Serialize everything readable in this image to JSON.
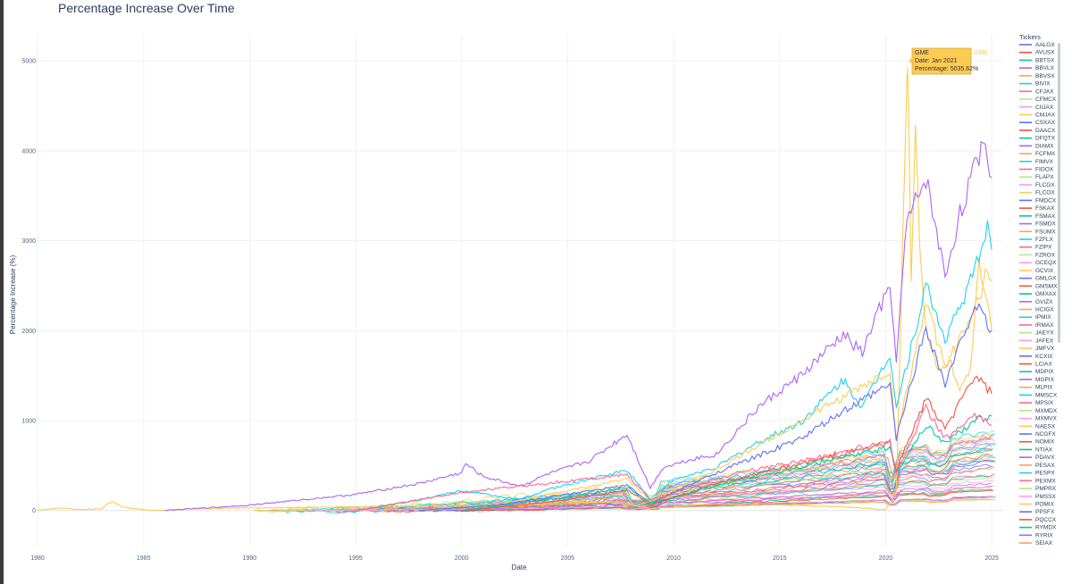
{
  "chart_data": {
    "type": "line",
    "title": "Percentage Increase Over Time",
    "xlabel": "Date",
    "ylabel": "Percentage Increase (%)",
    "xlim": [
      1980,
      2025.5
    ],
    "ylim": [
      -400,
      5300
    ],
    "x_ticks": [
      "1980",
      "1985",
      "1990",
      "1995",
      "2000",
      "2005",
      "2010",
      "2015",
      "2020",
      "2025"
    ],
    "y_ticks": [
      "0",
      "1000",
      "2000",
      "3000",
      "4000",
      "5000"
    ],
    "grid": true,
    "legend": {
      "title": "Tickers",
      "placement": "right"
    },
    "tooltip": {
      "series": "GME",
      "line1": "GME",
      "line2": "Date: Jan 2021",
      "line3": "Percentage: 5035.62%",
      "side_label": "GME",
      "x": 2021.04,
      "y": 5035.62
    },
    "series": [
      {
        "name": "AALGX",
        "color": "#636efa"
      },
      {
        "name": "AVUSX",
        "color": "#ef553b"
      },
      {
        "name": "BBTSX",
        "color": "#00cc96"
      },
      {
        "name": "BBVLX",
        "color": "#ab63fa"
      },
      {
        "name": "BBVSX",
        "color": "#ffa15a"
      },
      {
        "name": "BIVIX",
        "color": "#19d3f3"
      },
      {
        "name": "CFJAX",
        "color": "#ff6692"
      },
      {
        "name": "CFMCX",
        "color": "#b6e880"
      },
      {
        "name": "CIIJAX",
        "color": "#ff97ff"
      },
      {
        "name": "CMJAX",
        "color": "#fecb52"
      },
      {
        "name": "CSXAX",
        "color": "#636efa"
      },
      {
        "name": "DAACX",
        "color": "#ef553b"
      },
      {
        "name": "DFQTX",
        "color": "#00cc96"
      },
      {
        "name": "DIAMX",
        "color": "#ab63fa"
      },
      {
        "name": "FCFMX",
        "color": "#ffa15a"
      },
      {
        "name": "FIMVX",
        "color": "#19d3f3"
      },
      {
        "name": "FIOOX",
        "color": "#ff6692"
      },
      {
        "name": "FLAPX",
        "color": "#b6e880"
      },
      {
        "name": "FLCGX",
        "color": "#ff97ff"
      },
      {
        "name": "FLCOX",
        "color": "#fecb52"
      },
      {
        "name": "FMDCX",
        "color": "#636efa"
      },
      {
        "name": "FSKAX",
        "color": "#ef553b"
      },
      {
        "name": "FSMAX",
        "color": "#00cc96"
      },
      {
        "name": "FSMDX",
        "color": "#ab63fa"
      },
      {
        "name": "FSUMX",
        "color": "#ffa15a"
      },
      {
        "name": "FZFLX",
        "color": "#19d3f3"
      },
      {
        "name": "FZIPX",
        "color": "#ff6692"
      },
      {
        "name": "FZROX",
        "color": "#b6e880"
      },
      {
        "name": "GCEQX",
        "color": "#ff97ff"
      },
      {
        "name": "GCVIX",
        "color": "#fecb52"
      },
      {
        "name": "GMLGX",
        "color": "#636efa"
      },
      {
        "name": "GMSMX",
        "color": "#ef553b"
      },
      {
        "name": "GMXAX",
        "color": "#00cc96"
      },
      {
        "name": "GVIZX",
        "color": "#ab63fa"
      },
      {
        "name": "HCIGX",
        "color": "#ffa15a"
      },
      {
        "name": "IPMIX",
        "color": "#19d3f3"
      },
      {
        "name": "IRMAX",
        "color": "#ff6692"
      },
      {
        "name": "JAEYX",
        "color": "#b6e880"
      },
      {
        "name": "JAFEX",
        "color": "#ff97ff"
      },
      {
        "name": "JMFVX",
        "color": "#fecb52"
      },
      {
        "name": "KCXIX",
        "color": "#636efa"
      },
      {
        "name": "LCIAX",
        "color": "#ef553b"
      },
      {
        "name": "MDPIX",
        "color": "#00cc96"
      },
      {
        "name": "MGPIX",
        "color": "#ab63fa"
      },
      {
        "name": "MLPIX",
        "color": "#ffa15a"
      },
      {
        "name": "MMSCX",
        "color": "#19d3f3"
      },
      {
        "name": "MPSIX",
        "color": "#ff6692"
      },
      {
        "name": "MXMDX",
        "color": "#b6e880"
      },
      {
        "name": "MXMVX",
        "color": "#ff97ff"
      },
      {
        "name": "NAESX",
        "color": "#fecb52"
      },
      {
        "name": "NCGFX",
        "color": "#636efa"
      },
      {
        "name": "NOMIX",
        "color": "#ef553b"
      },
      {
        "name": "NTIAX",
        "color": "#00cc96"
      },
      {
        "name": "PDAVX",
        "color": "#ab63fa"
      },
      {
        "name": "PESAX",
        "color": "#ffa15a"
      },
      {
        "name": "PESPX",
        "color": "#19d3f3"
      },
      {
        "name": "PEXMX",
        "color": "#ff6692"
      },
      {
        "name": "PMPRX",
        "color": "#b6e880"
      },
      {
        "name": "PMSSX",
        "color": "#ff97ff"
      },
      {
        "name": "POMIX",
        "color": "#fecb52"
      },
      {
        "name": "PPSFX",
        "color": "#636efa"
      },
      {
        "name": "PQCCX",
        "color": "#ef553b"
      },
      {
        "name": "RYMDX",
        "color": "#00cc96"
      },
      {
        "name": "RYRIX",
        "color": "#ab63fa"
      },
      {
        "name": "SEIAX",
        "color": "#ffa15a"
      }
    ],
    "highlight_series": [
      {
        "name": "GME",
        "color": "#fecb52",
        "x": [
          1980,
          1981,
          1982,
          1983,
          1983.5,
          1984,
          1985,
          1986,
          1987,
          1990,
          1995,
          2000,
          2002,
          2005,
          2007,
          2009,
          2012,
          2015,
          2018,
          2020,
          2020.5,
          2021,
          2021.04,
          2021.2,
          2021.4,
          2021.6,
          2021.8,
          2022,
          2022.5,
          2023,
          2023.5,
          2024,
          2024.4,
          2024.8,
          2025
        ],
        "y": [
          0,
          30,
          10,
          20,
          100,
          40,
          10,
          0,
          20,
          30,
          40,
          60,
          50,
          80,
          100,
          20,
          80,
          60,
          40,
          10,
          200,
          4800,
          5035,
          2500,
          4400,
          3000,
          2200,
          1900,
          1500,
          1700,
          1300,
          1600,
          2800,
          2300,
          2000
        ]
      },
      {
        "name": "RYRIX",
        "color": "#ab63fa",
        "x": [
          1986,
          1990,
          1995,
          1998,
          2000,
          2000.2,
          2001,
          2002.8,
          2004,
          2006,
          2007.8,
          2008.9,
          2009.5,
          2011,
          2012,
          2014,
          2016,
          2018,
          2018.9,
          2019.6,
          2020.2,
          2020.5,
          2021,
          2021.9,
          2022.8,
          2023.5,
          2024.2,
          2024.6,
          2025
        ],
        "y": [
          0,
          60,
          180,
          300,
          420,
          520,
          380,
          270,
          400,
          550,
          850,
          250,
          480,
          580,
          620,
          1150,
          1500,
          1950,
          1750,
          2200,
          2450,
          1700,
          3200,
          3700,
          2600,
          3300,
          3800,
          4150,
          3700
        ]
      },
      {
        "name": "FIMVX",
        "color": "#19d3f3",
        "x": [
          1995,
          1998,
          2000,
          2002.8,
          2004,
          2007.8,
          2008.9,
          2010,
          2012,
          2014,
          2016,
          2018,
          2018.9,
          2020.2,
          2020.5,
          2021.9,
          2022.8,
          2024.2,
          2024.8,
          2025
        ],
        "y": [
          0,
          120,
          220,
          120,
          230,
          450,
          130,
          340,
          480,
          760,
          980,
          1450,
          1150,
          1750,
          1150,
          2500,
          1900,
          2650,
          3200,
          2900
        ]
      },
      {
        "name": "BBVSX",
        "color": "#fecb52",
        "x": [
          1998,
          2002,
          2007.8,
          2008.9,
          2012,
          2016,
          2020.2,
          2020.5,
          2021.9,
          2022.8,
          2024.2,
          2024.8,
          2025
        ],
        "y": [
          0,
          80,
          350,
          120,
          450,
          1000,
          1550,
          800,
          2300,
          1600,
          2200,
          2700,
          2550
        ]
      },
      {
        "name": "FMDCX",
        "color": "#636efa",
        "x": [
          1998,
          2002,
          2007.8,
          2008.9,
          2012,
          2016,
          2018,
          2020.2,
          2020.5,
          2021.9,
          2022.8,
          2024.2,
          2025
        ],
        "y": [
          0,
          70,
          280,
          80,
          420,
          800,
          1100,
          1400,
          800,
          2050,
          1400,
          2300,
          2000
        ]
      },
      {
        "name": "LCIAX",
        "color": "#ef553b",
        "x": [
          2000,
          2004,
          2007.8,
          2008.9,
          2012,
          2016,
          2020.2,
          2020.5,
          2021.9,
          2022.8,
          2024.2,
          2025
        ],
        "y": [
          0,
          90,
          230,
          60,
          300,
          520,
          750,
          450,
          1250,
          900,
          1500,
          1300
        ]
      },
      {
        "name": "MDPIX",
        "color": "#00cc96",
        "x": [
          2000,
          2005,
          2007.8,
          2008.9,
          2013,
          2017,
          2020.2,
          2020.5,
          2021.9,
          2022.8,
          2024.2,
          2025
        ],
        "y": [
          0,
          150,
          260,
          80,
          330,
          540,
          700,
          420,
          950,
          750,
          1000,
          1050
        ]
      },
      {
        "name": "FZIPX",
        "color": "#ff6692",
        "x": [
          1995,
          2000,
          2007.8,
          2008.9,
          2013,
          2017,
          2020.2,
          2020.5,
          2021.9,
          2022.8,
          2024.2,
          2025
        ],
        "y": [
          0,
          200,
          400,
          120,
          420,
          600,
          780,
          400,
          1150,
          800,
          1050,
          950
        ]
      }
    ],
    "background_band": {
      "count": 40,
      "x_start": 1990,
      "x_end": 2025.2,
      "y_max_min": 120,
      "y_max_max": 900
    }
  }
}
